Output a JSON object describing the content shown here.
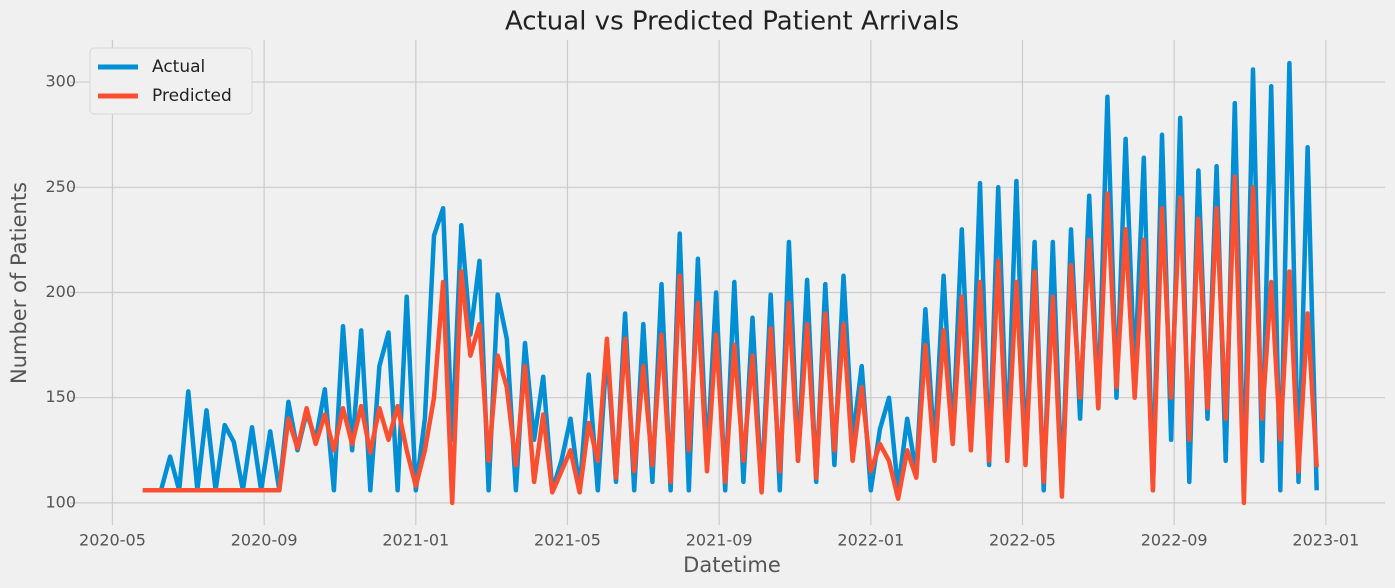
{
  "chart_data": {
    "type": "line",
    "title": "Actual vs Predicted Patient Arrivals",
    "xlabel": "Datetime",
    "ylabel": "Number of Patients",
    "x": [
      2020.4,
      2020.42,
      2020.44,
      2020.46,
      2020.48,
      2020.5,
      2020.52,
      2020.54,
      2020.56,
      2020.58,
      2020.6,
      2020.62,
      2020.64,
      2020.66,
      2020.68,
      2020.7,
      2020.72,
      2020.74,
      2020.76,
      2020.78,
      2020.8,
      2020.82,
      2020.84,
      2020.86,
      2020.88,
      2020.9,
      2020.92,
      2020.94,
      2020.96,
      2020.98,
      2021.0,
      2021.02,
      2021.04,
      2021.06,
      2021.08,
      2021.1,
      2021.12,
      2021.14,
      2021.16,
      2021.18,
      2021.2,
      2021.22,
      2021.24,
      2021.26,
      2021.28,
      2021.3,
      2021.32,
      2021.34,
      2021.36,
      2021.38,
      2021.4,
      2021.42,
      2021.44,
      2021.46,
      2021.48,
      2021.5,
      2021.52,
      2021.54,
      2021.56,
      2021.58,
      2021.6,
      2021.62,
      2021.64,
      2021.66,
      2021.68,
      2021.7,
      2021.72,
      2021.74,
      2021.76,
      2021.78,
      2021.8,
      2021.82,
      2021.84,
      2021.86,
      2021.88,
      2021.9,
      2021.92,
      2021.94,
      2021.96,
      2021.98,
      2022.0,
      2022.02,
      2022.04,
      2022.06,
      2022.08,
      2022.1,
      2022.12,
      2022.14,
      2022.16,
      2022.18,
      2022.2,
      2022.22,
      2022.24,
      2022.26,
      2022.28,
      2022.3,
      2022.32,
      2022.34,
      2022.36,
      2022.38,
      2022.4,
      2022.42,
      2022.44,
      2022.46,
      2022.48,
      2022.5,
      2022.52,
      2022.54,
      2022.56,
      2022.58,
      2022.6,
      2022.62,
      2022.64,
      2022.66,
      2022.68,
      2022.7,
      2022.72,
      2022.74,
      2022.76,
      2022.78,
      2022.8,
      2022.82,
      2022.84,
      2022.86,
      2022.88,
      2022.9,
      2022.92,
      2022.94,
      2022.96,
      2022.98
    ],
    "series": [
      {
        "name": "Actual",
        "color": "#008fd5",
        "values": [
          106,
          106,
          106,
          122,
          106,
          153,
          106,
          144,
          106,
          137,
          129,
          106,
          136,
          106,
          134,
          106,
          148,
          125,
          143,
          130,
          154,
          106,
          184,
          125,
          182,
          106,
          165,
          181,
          106,
          198,
          106,
          140,
          227,
          240,
          130,
          232,
          180,
          215,
          106,
          199,
          178,
          106,
          176,
          130,
          160,
          106,
          120,
          140,
          106,
          161,
          106,
          173,
          110,
          190,
          106,
          185,
          110,
          204,
          106,
          228,
          106,
          216,
          120,
          200,
          106,
          205,
          110,
          188,
          106,
          199,
          106,
          224,
          120,
          206,
          110,
          204,
          118,
          208,
          130,
          165,
          106,
          135,
          150,
          106,
          140,
          114,
          192,
          125,
          208,
          130,
          230,
          130,
          252,
          118,
          250,
          125,
          253,
          120,
          224,
          106,
          224,
          106,
          230,
          140,
          246,
          145,
          293,
          150,
          273,
          160,
          264,
          106,
          275,
          130,
          283,
          110,
          258,
          140,
          260,
          120,
          290,
          106,
          306,
          120,
          298,
          106,
          309,
          110,
          269,
          106
        ]
      },
      {
        "name": "Predicted",
        "color": "#fc4f30",
        "values": [
          106,
          106,
          106,
          106,
          106,
          106,
          106,
          106,
          106,
          106,
          106,
          106,
          106,
          106,
          106,
          106,
          140,
          126,
          145,
          128,
          142,
          125,
          145,
          128,
          146,
          124,
          145,
          130,
          146,
          125,
          108,
          125,
          150,
          205,
          100,
          210,
          170,
          185,
          120,
          170,
          155,
          118,
          165,
          110,
          142,
          105,
          115,
          125,
          105,
          138,
          120,
          178,
          112,
          178,
          115,
          165,
          118,
          180,
          110,
          208,
          125,
          195,
          115,
          180,
          110,
          175,
          120,
          170,
          105,
          183,
          115,
          195,
          120,
          185,
          112,
          190,
          125,
          185,
          120,
          155,
          115,
          128,
          120,
          102,
          125,
          112,
          175,
          120,
          182,
          128,
          198,
          125,
          205,
          120,
          215,
          120,
          205,
          118,
          210,
          110,
          198,
          103,
          213,
          150,
          225,
          145,
          247,
          155,
          230,
          150,
          225,
          106,
          240,
          150,
          245,
          130,
          235,
          145,
          240,
          140,
          255,
          100,
          250,
          140,
          205,
          130,
          210,
          115,
          190,
          117
        ]
      }
    ],
    "xlim": [
      2020.24,
      2023.13
    ],
    "ylim": [
      89.5,
      320
    ],
    "xticks": [
      {
        "value": 2020.3333,
        "label": "2020-05"
      },
      {
        "value": 2020.6667,
        "label": "2020-09"
      },
      {
        "value": 2021,
        "label": "2021-01"
      },
      {
        "value": 2021.3333,
        "label": "2021-05"
      },
      {
        "value": 2021.6667,
        "label": "2021-09"
      },
      {
        "value": 2022,
        "label": "2022-01"
      },
      {
        "value": 2022.3333,
        "label": "2022-05"
      },
      {
        "value": 2022.6667,
        "label": "2022-09"
      },
      {
        "value": 2023,
        "label": "2023-01"
      }
    ],
    "yticks": [
      100,
      150,
      200,
      250,
      300
    ],
    "grid": true,
    "legend": "upper-left"
  }
}
